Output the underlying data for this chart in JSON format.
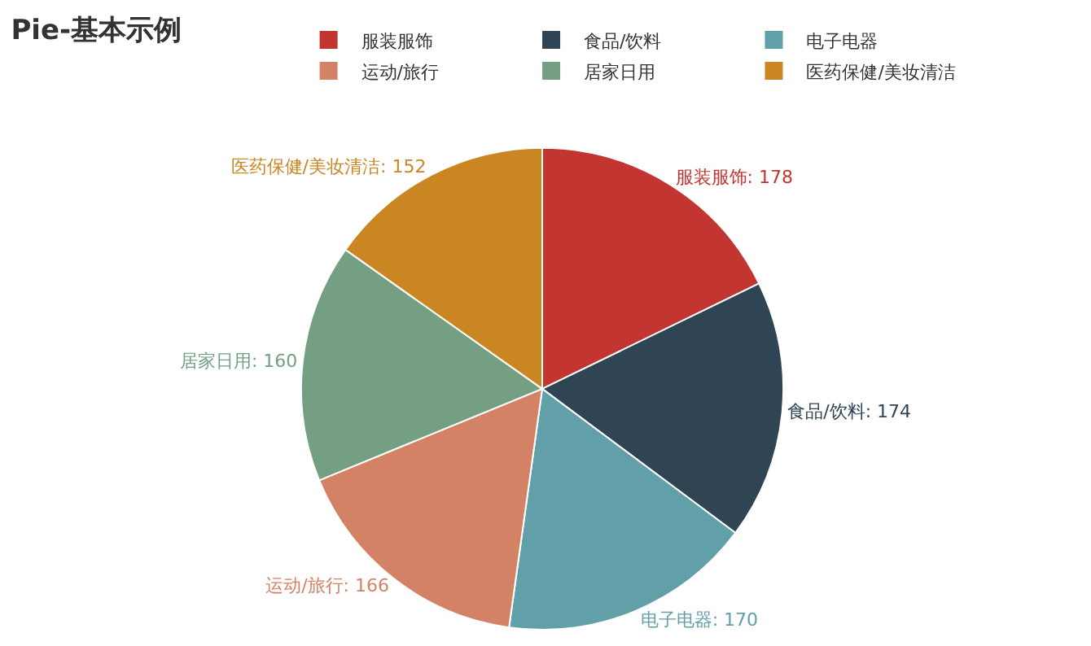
{
  "chart_data": {
    "type": "pie",
    "title": "Pie-基本示例",
    "categories": [
      "服装服饰",
      "食品/饮料",
      "电子电器",
      "运动/旅行",
      "居家日用",
      "医药保健/美妆清洁"
    ],
    "values": [
      178,
      174,
      170,
      166,
      160,
      152
    ],
    "colors": [
      "#c23531",
      "#2f4554",
      "#61a0a8",
      "#d48265",
      "#749f83",
      "#ca8622"
    ],
    "value_labels": [
      "服装服饰: 178",
      "食品/饮料: 174",
      "电子电器: 170",
      "运动/旅行: 166",
      "居家日用: 160",
      "医药保健/美妆清洁: 152"
    ],
    "legend": "top"
  }
}
